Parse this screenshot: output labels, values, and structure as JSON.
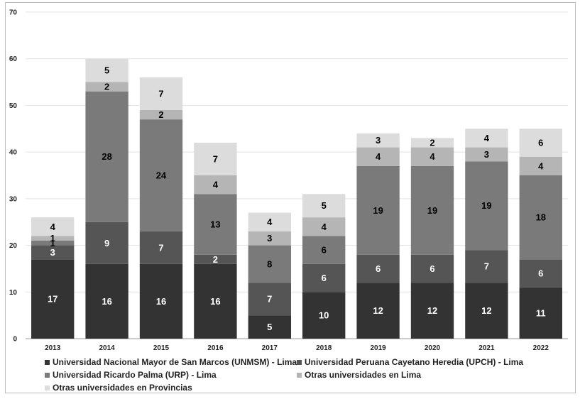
{
  "chart_data": {
    "type": "bar",
    "stacked": true,
    "categories": [
      "2013",
      "2014",
      "2015",
      "2016",
      "2017",
      "2018",
      "2019",
      "2020",
      "2021",
      "2022"
    ],
    "series": [
      {
        "name": "Universidad Nacional Mayor de San Marcos (UNMSM) - Lima",
        "color": "#333333",
        "label_color": "#ffffff",
        "values": [
          17,
          16,
          16,
          16,
          5,
          10,
          12,
          12,
          12,
          11
        ]
      },
      {
        "name": "Universidad Peruana Cayetano Heredia (UPCH) - Lima",
        "color": "#555555",
        "label_color": "#ffffff",
        "values": [
          3,
          9,
          7,
          2,
          7,
          6,
          6,
          6,
          7,
          6
        ]
      },
      {
        "name": "Universidad Ricardo Palma (URP) - Lima",
        "color": "#7a7a7a",
        "label_color": "#000000",
        "values": [
          1,
          28,
          24,
          13,
          8,
          6,
          19,
          19,
          19,
          18
        ]
      },
      {
        "name": "Otras universidades en Lima",
        "color": "#b5b5b5",
        "label_color": "#000000",
        "values": [
          1,
          2,
          2,
          4,
          3,
          4,
          4,
          4,
          3,
          4
        ]
      },
      {
        "name": "Otras universidades en Provincias",
        "color": "#dcdcdc",
        "label_color": "#000000",
        "values": [
          4,
          5,
          7,
          7,
          4,
          5,
          3,
          2,
          4,
          6
        ]
      }
    ],
    "ylim": [
      0,
      70
    ],
    "yticks": [
      0,
      10,
      20,
      30,
      40,
      50,
      60,
      70
    ],
    "grid": true,
    "legend_position": "bottom",
    "title": "",
    "xlabel": "",
    "ylabel": ""
  }
}
